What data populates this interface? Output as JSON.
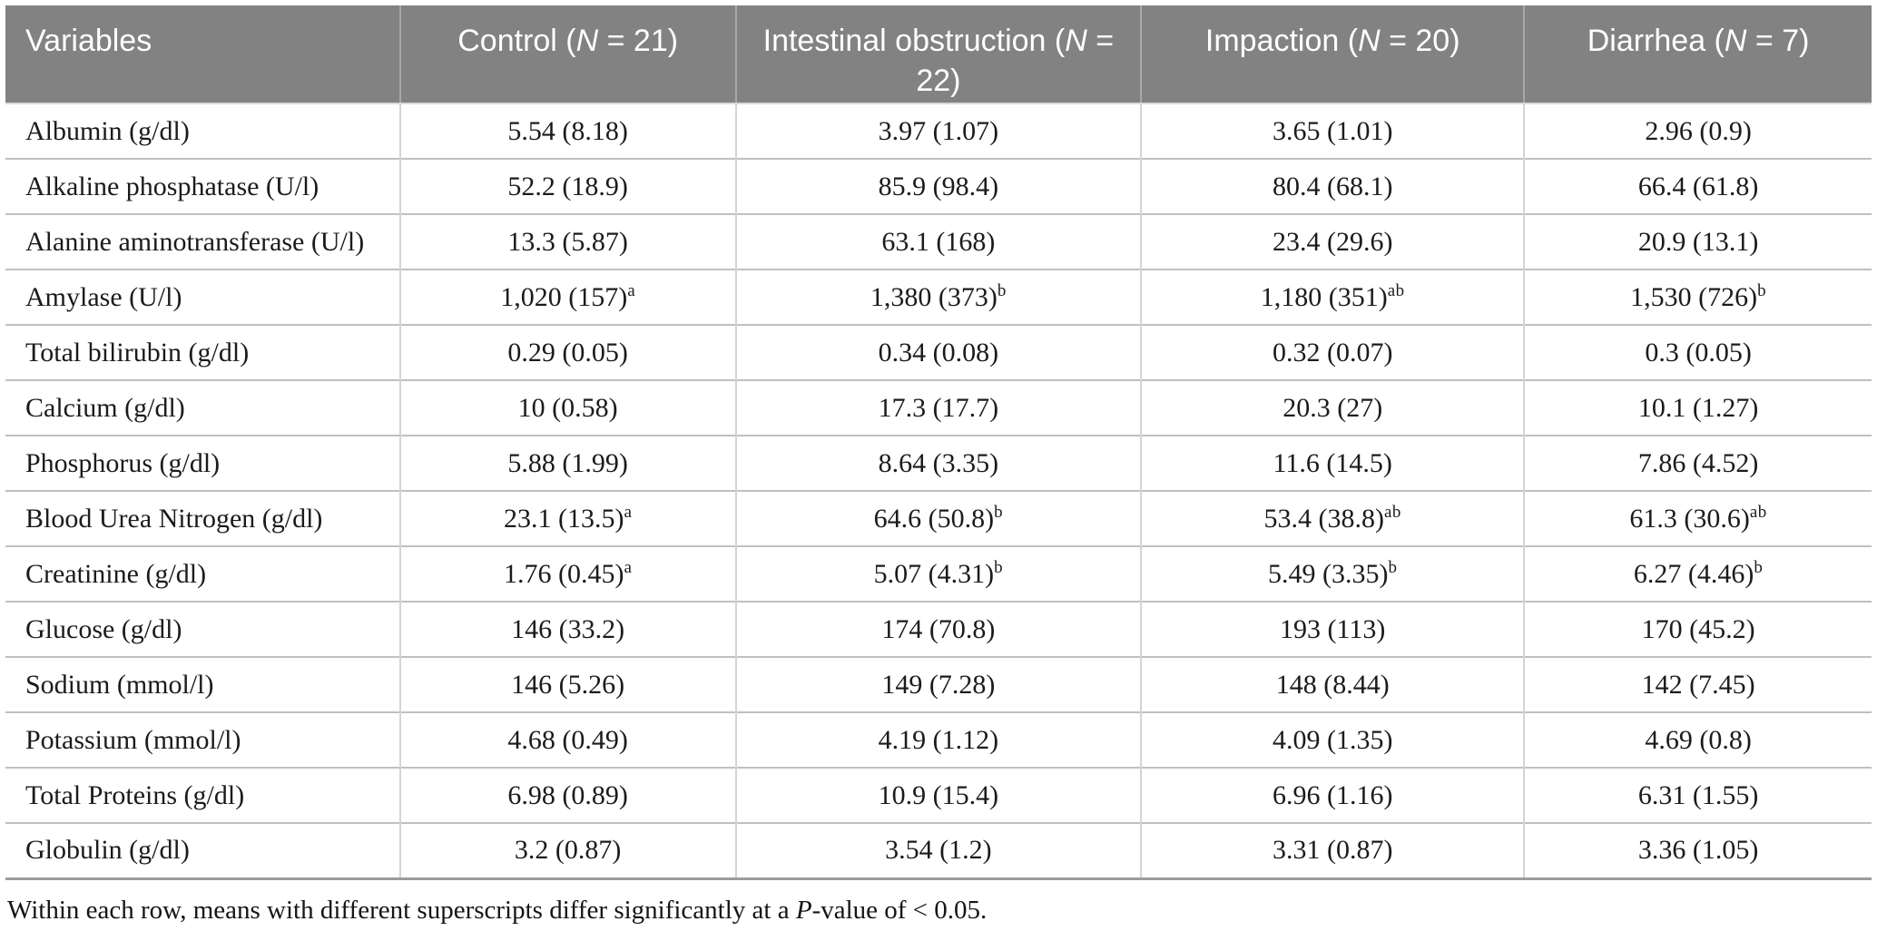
{
  "table": {
    "columns": [
      {
        "prefix": "Variables",
        "italic": "",
        "suffix": ""
      },
      {
        "prefix": "Control (",
        "italic": "N",
        "suffix": " = 21)"
      },
      {
        "prefix": "Intestinal obstruction (",
        "italic": "N",
        "suffix": " = 22)"
      },
      {
        "prefix": "Impaction (",
        "italic": "N",
        "suffix": " = 20)"
      },
      {
        "prefix": "Diarrhea (",
        "italic": "N",
        "suffix": " = 7)"
      }
    ],
    "rows": [
      {
        "variable": "Albumin (g/dl)",
        "values": [
          {
            "text": "5.54 (8.18)",
            "sup": ""
          },
          {
            "text": "3.97 (1.07)",
            "sup": ""
          },
          {
            "text": "3.65 (1.01)",
            "sup": ""
          },
          {
            "text": "2.96 (0.9)",
            "sup": ""
          }
        ]
      },
      {
        "variable": "Alkaline phosphatase (U/l)",
        "values": [
          {
            "text": "52.2 (18.9)",
            "sup": ""
          },
          {
            "text": "85.9 (98.4)",
            "sup": ""
          },
          {
            "text": "80.4 (68.1)",
            "sup": ""
          },
          {
            "text": "66.4 (61.8)",
            "sup": ""
          }
        ]
      },
      {
        "variable": "Alanine aminotransferase (U/l)",
        "values": [
          {
            "text": "13.3 (5.87)",
            "sup": ""
          },
          {
            "text": "63.1 (168)",
            "sup": ""
          },
          {
            "text": "23.4 (29.6)",
            "sup": ""
          },
          {
            "text": "20.9 (13.1)",
            "sup": ""
          }
        ]
      },
      {
        "variable": "Amylase (U/l)",
        "values": [
          {
            "text": "1,020 (157)",
            "sup": "a"
          },
          {
            "text": "1,380 (373)",
            "sup": "b"
          },
          {
            "text": "1,180 (351)",
            "sup": "ab"
          },
          {
            "text": "1,530 (726)",
            "sup": "b"
          }
        ]
      },
      {
        "variable": "Total bilirubin (g/dl)",
        "values": [
          {
            "text": "0.29 (0.05)",
            "sup": ""
          },
          {
            "text": "0.34 (0.08)",
            "sup": ""
          },
          {
            "text": "0.32 (0.07)",
            "sup": ""
          },
          {
            "text": "0.3 (0.05)",
            "sup": ""
          }
        ]
      },
      {
        "variable": "Calcium (g/dl)",
        "values": [
          {
            "text": "10 (0.58)",
            "sup": ""
          },
          {
            "text": "17.3 (17.7)",
            "sup": ""
          },
          {
            "text": "20.3 (27)",
            "sup": ""
          },
          {
            "text": "10.1 (1.27)",
            "sup": ""
          }
        ]
      },
      {
        "variable": "Phosphorus (g/dl)",
        "values": [
          {
            "text": "5.88 (1.99)",
            "sup": ""
          },
          {
            "text": "8.64 (3.35)",
            "sup": ""
          },
          {
            "text": "11.6 (14.5)",
            "sup": ""
          },
          {
            "text": "7.86 (4.52)",
            "sup": ""
          }
        ]
      },
      {
        "variable": "Blood Urea Nitrogen (g/dl)",
        "values": [
          {
            "text": "23.1 (13.5)",
            "sup": "a"
          },
          {
            "text": "64.6 (50.8)",
            "sup": "b"
          },
          {
            "text": "53.4 (38.8)",
            "sup": "ab"
          },
          {
            "text": "61.3 (30.6)",
            "sup": "ab"
          }
        ]
      },
      {
        "variable": "Creatinine (g/dl)",
        "values": [
          {
            "text": "1.76 (0.45)",
            "sup": "a"
          },
          {
            "text": "5.07 (4.31)",
            "sup": "b"
          },
          {
            "text": "5.49 (3.35)",
            "sup": "b"
          },
          {
            "text": "6.27 (4.46)",
            "sup": "b"
          }
        ]
      },
      {
        "variable": "Glucose (g/dl)",
        "values": [
          {
            "text": "146 (33.2)",
            "sup": ""
          },
          {
            "text": "174 (70.8)",
            "sup": ""
          },
          {
            "text": "193 (113)",
            "sup": ""
          },
          {
            "text": "170 (45.2)",
            "sup": ""
          }
        ]
      },
      {
        "variable": "Sodium (mmol/l)",
        "values": [
          {
            "text": "146 (5.26)",
            "sup": ""
          },
          {
            "text": "149 (7.28)",
            "sup": ""
          },
          {
            "text": "148 (8.44)",
            "sup": ""
          },
          {
            "text": "142 (7.45)",
            "sup": ""
          }
        ]
      },
      {
        "variable": "Potassium (mmol/l)",
        "values": [
          {
            "text": "4.68 (0.49)",
            "sup": ""
          },
          {
            "text": "4.19 (1.12)",
            "sup": ""
          },
          {
            "text": "4.09 (1.35)",
            "sup": ""
          },
          {
            "text": "4.69 (0.8)",
            "sup": ""
          }
        ]
      },
      {
        "variable": "Total Proteins (g/dl)",
        "values": [
          {
            "text": "6.98 (0.89)",
            "sup": ""
          },
          {
            "text": "10.9 (15.4)",
            "sup": ""
          },
          {
            "text": "6.96 (1.16)",
            "sup": ""
          },
          {
            "text": "6.31 (1.55)",
            "sup": ""
          }
        ]
      },
      {
        "variable": "Globulin (g/dl)",
        "values": [
          {
            "text": "3.2 (0.87)",
            "sup": ""
          },
          {
            "text": "3.54 (1.2)",
            "sup": ""
          },
          {
            "text": "3.31 (0.87)",
            "sup": ""
          },
          {
            "text": "3.36 (1.05)",
            "sup": ""
          }
        ]
      }
    ]
  },
  "footnote": {
    "pre": "Within each row, means with different superscripts differ significantly at a ",
    "italic": "P",
    "post": "-value of < 0.05."
  },
  "colors": {
    "header_bg": "#828282",
    "header_text": "#ffffff",
    "body_text": "#1b1b1b",
    "row_divider": "#c0c0c0",
    "column_divider": "#d4d4d4",
    "table_bottom_border": "#9c9c9c"
  }
}
